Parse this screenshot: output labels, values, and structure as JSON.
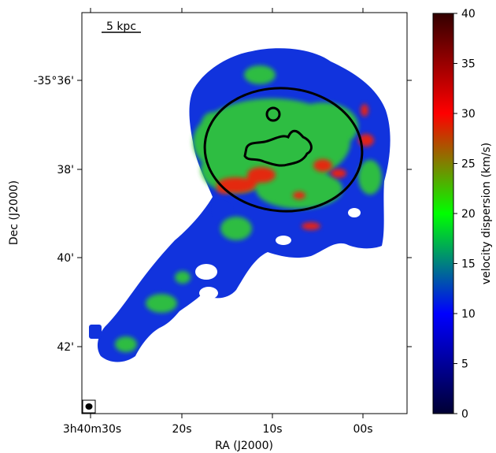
{
  "figure": {
    "axes": {
      "xlabel": "RA (J2000)",
      "ylabel": "Dec (J2000)",
      "x_ticks": [
        "3h40m30s",
        "20s",
        "10s",
        "00s"
      ],
      "y_ticks": [
        "-35°36'",
        "38'",
        "40'",
        "42'"
      ]
    },
    "scalebar": {
      "label": "5 kpc"
    },
    "colorbar": {
      "label": "velocity dispersion (km/s)",
      "range": [
        0,
        40
      ],
      "ticks": [
        "0",
        "5",
        "10",
        "15",
        "20",
        "25",
        "30",
        "35",
        "40"
      ],
      "colors": [
        "#000033",
        "#0000ff",
        "#00ff00",
        "#ff0000",
        "#330000"
      ]
    },
    "map": {
      "colors": {
        "low": "#1133dd",
        "mid": "#33cc33",
        "high": "#ee2211"
      },
      "contour_color": "#000000"
    }
  }
}
